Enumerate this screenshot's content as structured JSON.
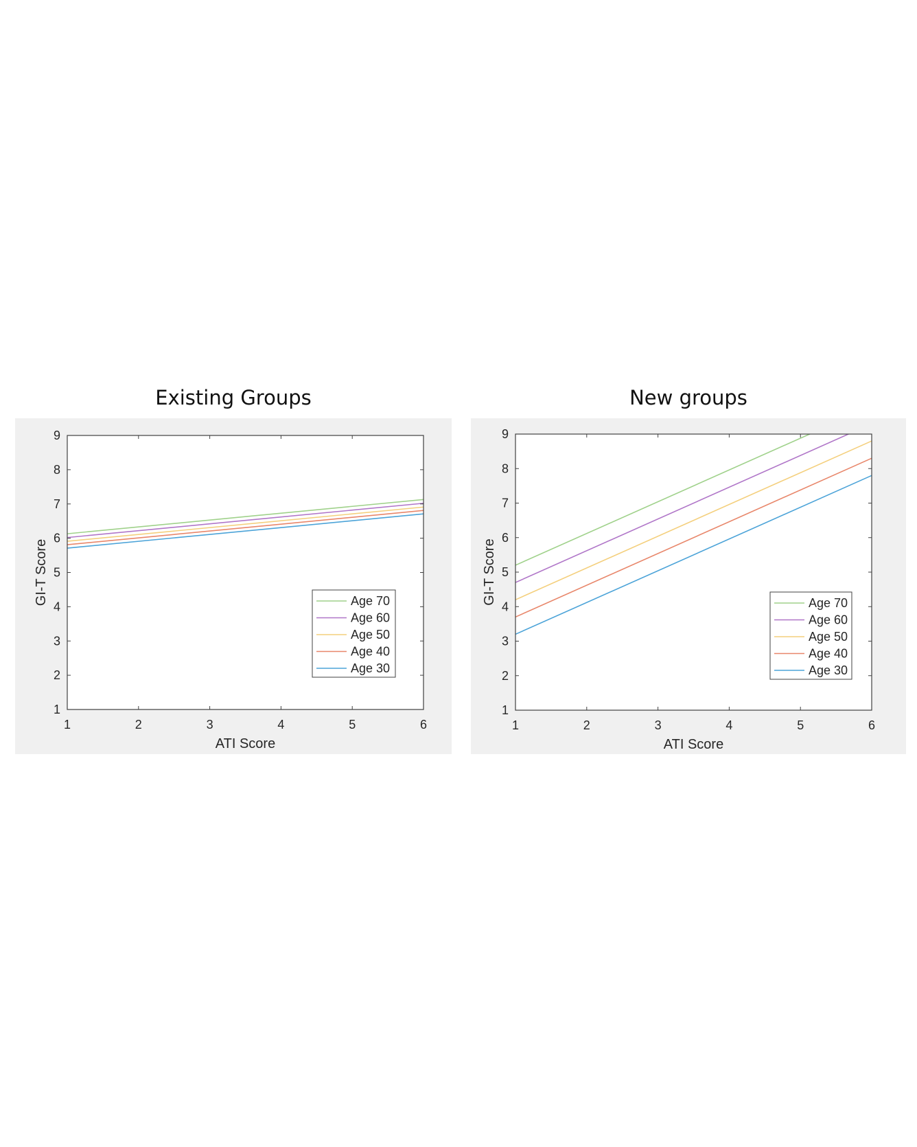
{
  "chart_data": [
    {
      "type": "line",
      "title": "Existing Groups",
      "xlabel": "ATI Score",
      "ylabel": "GI-T Score",
      "xlim": [
        1,
        6
      ],
      "ylim": [
        1,
        9
      ],
      "xticks": [
        "1",
        "2",
        "3",
        "4",
        "5",
        "6"
      ],
      "yticks": [
        "1",
        "2",
        "3",
        "4",
        "5",
        "6",
        "7",
        "8",
        "9"
      ],
      "grid": false,
      "legend_position": "bottom-right",
      "series": [
        {
          "name": "Age 70",
          "color": "#9fd18a",
          "x": [
            1,
            6
          ],
          "y": [
            6.13,
            7.13
          ]
        },
        {
          "name": "Age 60",
          "color": "#b076c8",
          "x": [
            1,
            6
          ],
          "y": [
            6.02,
            7.02
          ]
        },
        {
          "name": "Age 50",
          "color": "#f4cf7c",
          "x": [
            1,
            6
          ],
          "y": [
            5.91,
            6.91
          ]
        },
        {
          "name": "Age 40",
          "color": "#e8866a",
          "x": [
            1,
            6
          ],
          "y": [
            5.81,
            6.81
          ]
        },
        {
          "name": "Age 30",
          "color": "#4ba3d8",
          "x": [
            1,
            6
          ],
          "y": [
            5.71,
            6.71
          ]
        }
      ]
    },
    {
      "type": "line",
      "title": "New groups",
      "xlabel": "ATI Score",
      "ylabel": "GI-T Score",
      "xlim": [
        1,
        6
      ],
      "ylim": [
        1,
        9
      ],
      "xticks": [
        "1",
        "2",
        "3",
        "4",
        "5",
        "6"
      ],
      "yticks": [
        "1",
        "2",
        "3",
        "4",
        "5",
        "6",
        "7",
        "8",
        "9"
      ],
      "grid": false,
      "legend_position": "bottom-right",
      "series": [
        {
          "name": "Age 70",
          "color": "#9fd18a",
          "x": [
            1,
            6
          ],
          "y": [
            5.2,
            9.8
          ]
        },
        {
          "name": "Age 60",
          "color": "#b076c8",
          "x": [
            1,
            6
          ],
          "y": [
            4.7,
            9.3
          ]
        },
        {
          "name": "Age 50",
          "color": "#f4cf7c",
          "x": [
            1,
            6
          ],
          "y": [
            4.2,
            8.8
          ]
        },
        {
          "name": "Age 40",
          "color": "#e8866a",
          "x": [
            1,
            6
          ],
          "y": [
            3.7,
            8.3
          ]
        },
        {
          "name": "Age 30",
          "color": "#4ba3d8",
          "x": [
            1,
            6
          ],
          "y": [
            3.2,
            7.8
          ]
        }
      ]
    }
  ]
}
